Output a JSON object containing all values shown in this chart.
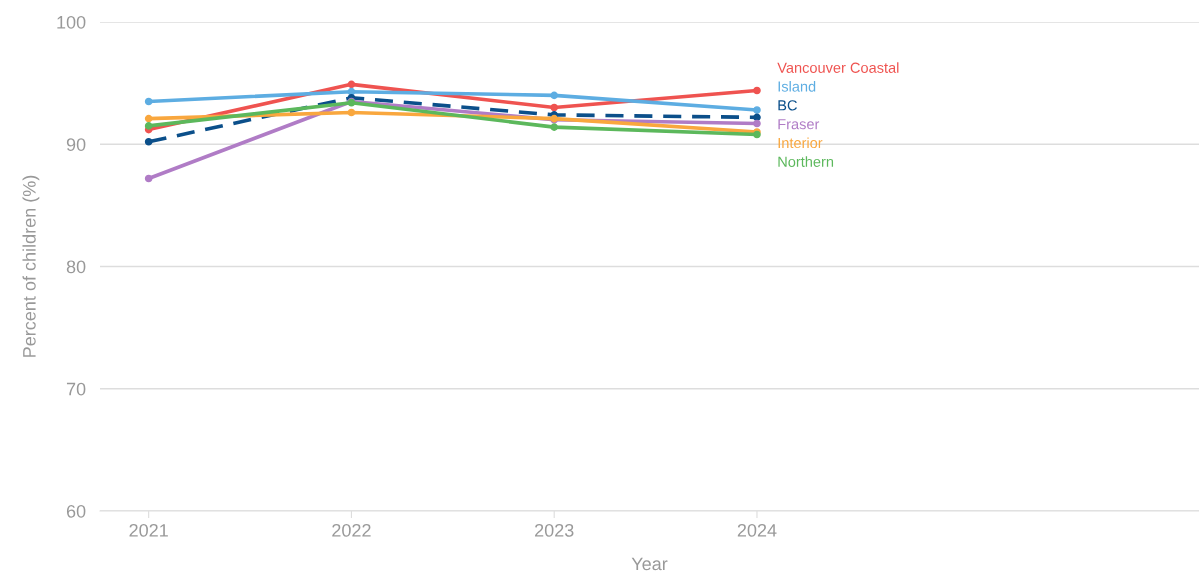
{
  "chart_data": {
    "type": "line",
    "xlabel": "Year",
    "ylabel": "Percent of children (%)",
    "x": [
      2021,
      2022,
      2023,
      2024
    ],
    "xlim": [
      2020.76,
      2026.18
    ],
    "xticks": [
      2021,
      2022,
      2023,
      2024
    ],
    "ylim": [
      60,
      100
    ],
    "yticks": [
      60,
      70,
      80,
      90,
      100
    ],
    "grid": "y",
    "legend": false,
    "marker": "circle",
    "series": [
      {
        "name": "Vancouver Coastal",
        "color": "#ef5350",
        "values": [
          91.2,
          94.9,
          93.0,
          94.4
        ]
      },
      {
        "name": "Island",
        "color": "#5dade2",
        "values": [
          93.5,
          94.3,
          94.0,
          92.8
        ]
      },
      {
        "name": "BC",
        "color": "#0b4f8a",
        "values": [
          90.2,
          93.8,
          92.4,
          92.2
        ],
        "line_style": "dashed"
      },
      {
        "name": "Fraser",
        "color": "#b07cc6",
        "values": [
          87.2,
          93.5,
          92.0,
          91.7
        ]
      },
      {
        "name": "Interior",
        "color": "#f9a73e",
        "values": [
          92.1,
          92.6,
          92.1,
          91.0
        ]
      },
      {
        "name": "Northern",
        "color": "#5cb85c",
        "values": [
          91.5,
          93.4,
          91.4,
          90.8
        ]
      }
    ]
  }
}
